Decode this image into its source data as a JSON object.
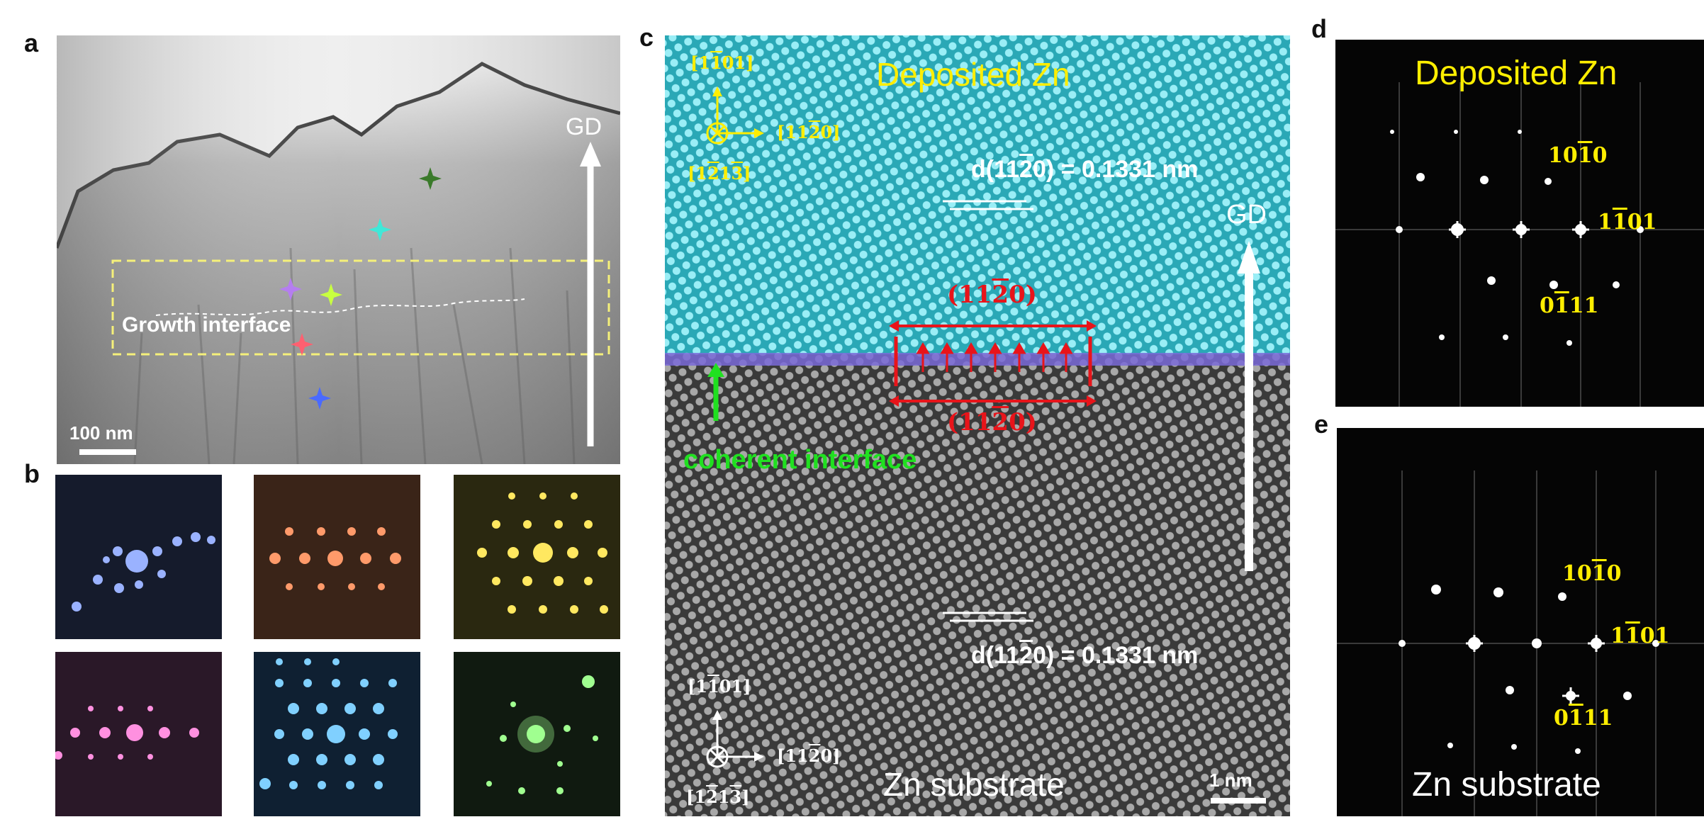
{
  "panels": {
    "a": {
      "letter": "a",
      "gd": "GD",
      "growth_interface": "Growth interface",
      "scalebar": "100 nm",
      "colors": {
        "background_gradient": [
          "#f0f0f0",
          "#8a8a8a"
        ],
        "dashed_box": "#f5f07a"
      },
      "markers": [
        "#3a7a2a",
        "#40e8d8",
        "#b57ef0",
        "#c8ff40",
        "#ff6070",
        "#4a6aff"
      ]
    },
    "b": {
      "letter": "b",
      "tiles": [
        {
          "name": "blue",
          "bg": "#141a2a",
          "spot": "#9ab2ff"
        },
        {
          "name": "orange",
          "bg": "#3a2418",
          "spot": "#ff9a6a"
        },
        {
          "name": "yellow",
          "bg": "#2a2810",
          "spot": "#ffe860"
        },
        {
          "name": "magenta",
          "bg": "#2a1828",
          "spot": "#ff90e0"
        },
        {
          "name": "lightblue",
          "bg": "#102030",
          "spot": "#80d0ff"
        },
        {
          "name": "green",
          "bg": "#101a10",
          "spot": "#a0ff90"
        }
      ]
    },
    "c": {
      "letter": "c",
      "top_title": "Deposited Zn",
      "bottom_title": "Zn substrate",
      "gd": "GD",
      "d_label": "d(11",
      "d_bar": "2",
      "d_rest": "0) = 0.1331 nm",
      "plane_prefix": "(11",
      "plane_bar": "2",
      "plane_suffix": "0)",
      "coherent": "coherent interface",
      "scalebar": "1 nm",
      "axes_top": {
        "up_a": "[1",
        "up_b": "1",
        "up_c": "01]",
        "right_a": "[11",
        "right_b": "2",
        "right_c": "0]",
        "zone_a": "[1",
        "zone_b": "2",
        "zone_c": "1",
        "zone_d": "3",
        "zone_e": "]"
      },
      "colors": {
        "deposited": "#38c0cc",
        "substrate": "#5a5a5a",
        "interface": "#7a6ad8",
        "arrows": "#e8141a"
      }
    },
    "d": {
      "letter": "d",
      "title": "Deposited Zn",
      "spots": [
        {
          "a": "10",
          "b": "1",
          "c": "0"
        },
        {
          "a": "1",
          "b": "1",
          "c": "01"
        },
        {
          "a": "0",
          "b": "1",
          "c": "11"
        }
      ]
    },
    "e": {
      "letter": "e",
      "title": "Zn substrate",
      "spots": [
        {
          "a": "10",
          "b": "1",
          "c": "0"
        },
        {
          "a": "1",
          "b": "1",
          "c": "01"
        },
        {
          "a": "0",
          "b": "1",
          "c": "11"
        }
      ]
    }
  }
}
